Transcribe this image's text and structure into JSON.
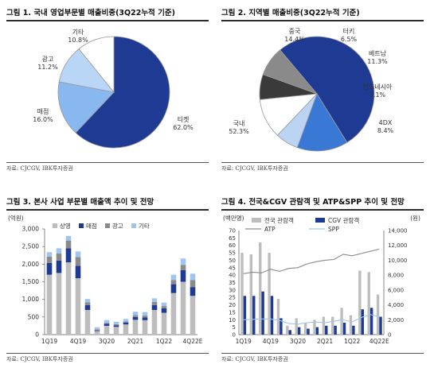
{
  "charts": [
    {
      "id": "fig1",
      "title": "그림 1. 국내 영업부문별 매출비중(3Q22누적 기준)",
      "source": "자료: CJCGV, IBK투자증권"
    },
    {
      "id": "fig2",
      "title": "그림 2. 지역별 매출비중(3Q22누적 기준)",
      "source": "자료: CJCGV, IBK투자증권"
    },
    {
      "id": "fig3",
      "title": "그림 3. 본사 사업 부문별 매출액 추이 및 전망",
      "source": "자료: CJCGV, IBK투자증권"
    },
    {
      "id": "fig4",
      "title": "그림 4. 전국&CGV 관람객 및 ATP&SPP 추이 및 전망",
      "source": "자료: CJCGV, IBK투자증권"
    }
  ],
  "chart_data": [
    {
      "type": "pie",
      "labels": [
        "티켓",
        "매점",
        "광고",
        "기타"
      ],
      "values": [
        62.0,
        16.0,
        11.2,
        10.8
      ],
      "value_labels": [
        "62.0%",
        "16.0%",
        "11.2%",
        "10.8%"
      ],
      "colors": [
        "#1f3a93",
        "#88b8ef",
        "#b9d6f6",
        "#ffffff"
      ]
    },
    {
      "type": "pie",
      "labels": [
        "국내",
        "중국",
        "터키",
        "베트남",
        "인도네시아",
        "4DX"
      ],
      "values": [
        52.3,
        14.4,
        6.5,
        11.3,
        7.1,
        8.4
      ],
      "value_labels": [
        "52.3%",
        "14.4%",
        "6.5%",
        "11.3%",
        "7.1%",
        "8.4%"
      ],
      "colors": [
        "#1f3a93",
        "#3a78d6",
        "#bcd4f4",
        "#ffffff",
        "#3a3a3a",
        "#8a8a8a"
      ]
    },
    {
      "type": "bar",
      "stacked": true,
      "unit_label": "(억원)",
      "categories": [
        "1Q19",
        "2Q19",
        "3Q19",
        "4Q19",
        "1Q20",
        "2Q20",
        "3Q20",
        "4Q20",
        "1Q21",
        "2Q21",
        "3Q21",
        "4Q21",
        "1Q22",
        "2Q22",
        "3Q22",
        "4Q22E"
      ],
      "tick_labels": [
        "1Q19",
        "",
        "",
        "4Q19",
        "",
        "",
        "3Q20",
        "",
        "",
        "2Q21",
        "",
        "",
        "1Q22",
        "",
        "",
        "4Q22E"
      ],
      "series": [
        {
          "name": "상영",
          "color": "#bdbdbd",
          "values": [
            1700,
            1750,
            2050,
            1600,
            700,
            100,
            250,
            220,
            290,
            420,
            410,
            700,
            620,
            1180,
            1500,
            1100
          ]
        },
        {
          "name": "매점",
          "color": "#1f3a93",
          "values": [
            330,
            350,
            400,
            350,
            140,
            20,
            55,
            45,
            55,
            80,
            80,
            140,
            130,
            250,
            330,
            250
          ]
        },
        {
          "name": "광고",
          "color": "#8a8a8a",
          "values": [
            180,
            200,
            220,
            250,
            80,
            30,
            30,
            30,
            30,
            50,
            50,
            90,
            60,
            120,
            150,
            200
          ]
        },
        {
          "name": "기타",
          "color": "#9ec6f0",
          "values": [
            130,
            150,
            130,
            160,
            90,
            60,
            80,
            70,
            70,
            100,
            100,
            100,
            100,
            150,
            180,
            180
          ]
        }
      ],
      "ylim": [
        0,
        3000
      ],
      "yticks": [
        0,
        500,
        1000,
        1500,
        2000,
        2500,
        3000
      ],
      "ytick_labels": [
        "0",
        "500",
        "1,000",
        "1,500",
        "2,000",
        "2,500",
        "3,000"
      ],
      "legend": "top-left"
    },
    {
      "type": "bar-line",
      "left_unit_label": "(백만명)",
      "right_unit_label": "(원)",
      "categories": [
        "1Q19",
        "2Q19",
        "3Q19",
        "4Q19",
        "1Q20",
        "2Q20",
        "3Q20",
        "4Q20",
        "1Q21",
        "2Q21",
        "3Q21",
        "4Q21",
        "1Q22",
        "2Q22",
        "3Q22",
        "4Q22E"
      ],
      "tick_labels": [
        "1Q19",
        "",
        "",
        "4Q19",
        "",
        "",
        "3Q20",
        "",
        "",
        "2Q21",
        "",
        "",
        "1Q22",
        "",
        "",
        "4Q22E"
      ],
      "bar_series": [
        {
          "name": "전국 관람객",
          "color": "#bdbdbd",
          "values": [
            55,
            54,
            62,
            55,
            24,
            6,
            11,
            8,
            10,
            12,
            12,
            18,
            13,
            43,
            42,
            27
          ]
        },
        {
          "name": "CGV 관람객",
          "color": "#1f3a93",
          "values": [
            26,
            26,
            29,
            26,
            11,
            3,
            5,
            4,
            5,
            6,
            6,
            8,
            6,
            17,
            18,
            12
          ]
        }
      ],
      "line_series": [
        {
          "name": "ATP",
          "color": "#8a8a8a",
          "values": [
            8200,
            8400,
            8300,
            8800,
            8500,
            8900,
            9000,
            9500,
            9800,
            10000,
            10100,
            10800,
            10600,
            10900,
            11200,
            11500
          ]
        },
        {
          "name": "SPP",
          "color": "#9ec6f0",
          "values": [
            2000,
            2050,
            2100,
            2100,
            1900,
            1500,
            1400,
            1600,
            1700,
            1600,
            1800,
            2000,
            1700,
            2300,
            2700,
            2400
          ]
        }
      ],
      "ylim_left": [
        0,
        70
      ],
      "yticks_left": [
        0,
        5,
        10,
        15,
        20,
        25,
        30,
        35,
        40,
        45,
        50,
        55,
        60,
        65,
        70
      ],
      "ylim_right": [
        0,
        14000
      ],
      "yticks_right": [
        0,
        2000,
        4000,
        6000,
        8000,
        10000,
        12000,
        14000
      ],
      "ytick_labels_right": [
        "0",
        "2,000",
        "4,000",
        "6,000",
        "8,000",
        "10,000",
        "12,000",
        "14,000"
      ],
      "legend": "top"
    }
  ]
}
